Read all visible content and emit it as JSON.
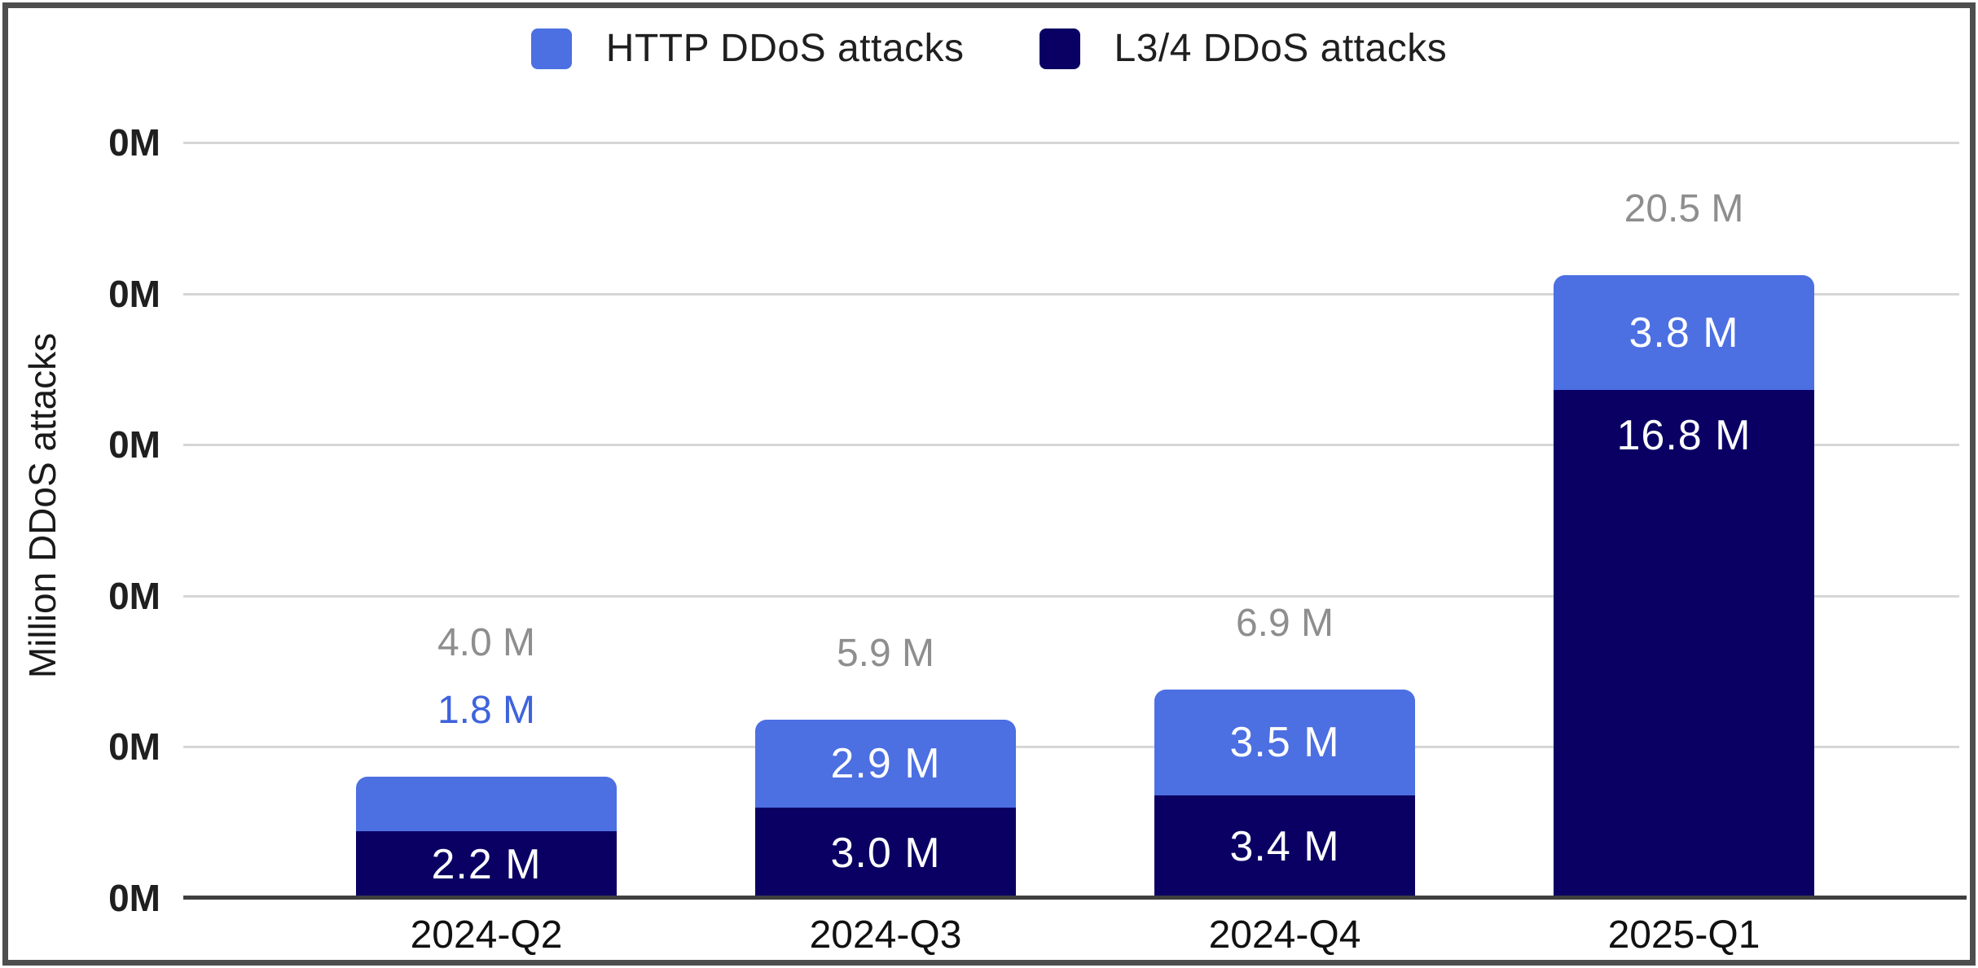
{
  "legend": [
    {
      "label": "HTTP DDoS attacks",
      "color": "#4C6FE2"
    },
    {
      "label": "L3/4 DDoS attacks",
      "color": "#0A0063"
    }
  ],
  "y_axis": {
    "title": "Million DDoS attacks",
    "tick_label": "0M",
    "tick_count": 6
  },
  "chart_data": {
    "type": "bar",
    "stacked": true,
    "title": "",
    "xlabel": "",
    "ylabel": "Million DDoS attacks",
    "ylim": [
      0,
      25
    ],
    "grid": true,
    "legend_position": "top",
    "categories": [
      "2024-Q2",
      "2024-Q3",
      "2024-Q4",
      "2025-Q1"
    ],
    "series": [
      {
        "name": "HTTP DDoS attacks",
        "color": "#4C6FE2",
        "outside_label_color": "#3E63DC",
        "values": [
          1.8,
          2.9,
          3.5,
          3.8
        ],
        "labels": [
          "1.8 M",
          "2.9 M",
          "3.5 M",
          "3.8 M"
        ]
      },
      {
        "name": "L3/4 DDoS attacks",
        "color": "#0A0063",
        "values": [
          2.2,
          3.0,
          3.4,
          16.8
        ],
        "labels": [
          "2.2 M",
          "3.0 M",
          "3.4 M",
          "16.8 M"
        ]
      }
    ],
    "totals": [
      4.0,
      5.9,
      6.9,
      20.5
    ],
    "total_labels": [
      "4.0 M",
      "5.9 M",
      "6.9 M",
      "20.5 M"
    ]
  },
  "colors": {
    "gridline": "#d6d6d6",
    "baseline": "#3f3f3f",
    "frame_border": "#4e4e4e",
    "total_label": "#8e8e8e",
    "axis_text": "#1f1f1f",
    "bar_value_text": "#ffffff",
    "background": "#ffffff"
  }
}
